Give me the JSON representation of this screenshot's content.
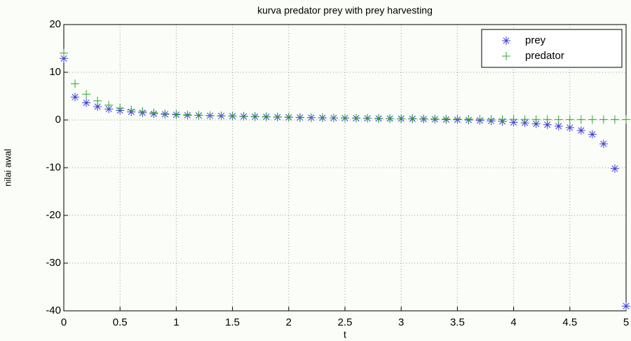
{
  "chart_data": {
    "type": "scatter",
    "title": "kurva predator prey with prey harvesting",
    "x_label": "t",
    "y_label": "nilai awal",
    "x": [
      0,
      0.1,
      0.2,
      0.3,
      0.4,
      0.5,
      0.6,
      0.7,
      0.8,
      0.9,
      1,
      1.1,
      1.2,
      1.3,
      1.4,
      1.5,
      1.6,
      1.7,
      1.8,
      1.9,
      2,
      2.1,
      2.2,
      2.3,
      2.4,
      2.5,
      2.6,
      2.7,
      2.8,
      2.9,
      3,
      3.1,
      3.2,
      3.3,
      3.4,
      3.5,
      3.6,
      3.7,
      3.8,
      3.9,
      4,
      4.1,
      4.2,
      4.3,
      4.4,
      4.5,
      4.6,
      4.7,
      4.8,
      4.9,
      5
    ],
    "series": [
      {
        "name": "prey",
        "color": "#3c3cdc",
        "marker": "star",
        "values": [
          12.9,
          4.8,
          3.6,
          2.8,
          2.3,
          2.0,
          1.7,
          1.5,
          1.3,
          1.2,
          1.1,
          1.0,
          0.95,
          0.9,
          0.85,
          0.8,
          0.75,
          0.7,
          0.65,
          0.6,
          0.55,
          0.5,
          0.48,
          0.45,
          0.42,
          0.4,
          0.38,
          0.35,
          0.32,
          0.3,
          0.28,
          0.25,
          0.2,
          0.15,
          0.1,
          0.05,
          0,
          -0.1,
          -0.2,
          -0.3,
          -0.5,
          -0.6,
          -0.8,
          -1.0,
          -1.3,
          -1.6,
          -2.2,
          -3.0,
          -5.0,
          -10.2,
          -39
        ]
      },
      {
        "name": "predator",
        "color": "#2ea82e",
        "marker": "plus",
        "values": [
          14,
          7.6,
          5.4,
          4.0,
          3.1,
          2.5,
          2.1,
          1.8,
          1.5,
          1.3,
          1.2,
          1.1,
          1.0,
          0.95,
          0.9,
          0.85,
          0.8,
          0.75,
          0.7,
          0.65,
          0.6,
          0.55,
          0.5,
          0.48,
          0.45,
          0.42,
          0.4,
          0.38,
          0.35,
          0.32,
          0.3,
          0.28,
          0.25,
          0.22,
          0.2,
          0.18,
          0.16,
          0.15,
          0.14,
          0.13,
          0.12,
          0.12,
          0.11,
          0.11,
          0.1,
          0.1,
          0.1,
          0.1,
          0.1,
          0.1,
          0.1
        ]
      }
    ],
    "xlim": [
      0,
      5
    ],
    "ylim": [
      -40,
      20
    ],
    "xticks": [
      0,
      0.5,
      1,
      1.5,
      2,
      2.5,
      3,
      3.5,
      4,
      4.5,
      5
    ],
    "yticks": [
      -40,
      -30,
      -20,
      -10,
      0,
      10,
      20
    ],
    "grid": true,
    "legend": "top-right"
  }
}
